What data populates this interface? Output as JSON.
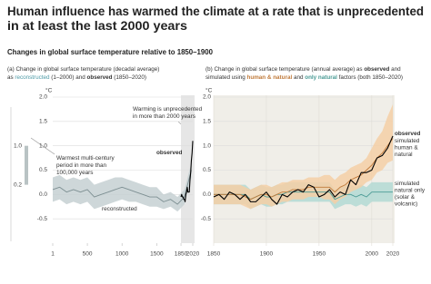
{
  "title_lines": [
    "Human influence has warmed the climate at a rate that is unprecedented",
    "in at least the last 2000 years"
  ],
  "subtitle": "Changes in global surface temperature relative to 1850–1900",
  "chart_data": [
    {
      "type": "line",
      "header": [
        [
          {
            "text": "(a) Change in global surface temperature (decadal average)"
          }
        ],
        [
          {
            "text": "as "
          },
          {
            "text": "reconstructed",
            "color": "#4d9aa6"
          },
          {
            "text": " (1–2000) and "
          },
          {
            "text": "observed",
            "bold": true
          },
          {
            "text": " (1850–2020)"
          }
        ]
      ],
      "y_unit": "°C",
      "xlim": [
        1,
        2020
      ],
      "xticks": [
        1,
        500,
        1000,
        1500,
        1850,
        2020
      ],
      "ylim": [
        -1,
        2
      ],
      "yticks": [
        -0.5,
        {
          "value": 0,
          "label": "0.0"
        },
        0.5,
        {
          "value": 1,
          "label": "1.0"
        },
        1.5,
        {
          "value": 2,
          "label": "2.0"
        }
      ],
      "grid": true,
      "annotations": [
        [
          "Warming is unprecedented",
          "in more than 2000 years"
        ],
        [
          "Warmest multi-century",
          "period in more than",
          "100,000 years"
        ]
      ],
      "range_bar": [
        0.2,
        {
          "value": 1,
          "label": "1.0"
        }
      ],
      "series": [
        {
          "name": "reconstructed",
          "color": "#7d8f92",
          "band_color": "#c5d0d2",
          "x": [
            1,
            100,
            200,
            300,
            400,
            500,
            600,
            700,
            800,
            900,
            1000,
            1100,
            1200,
            1300,
            1400,
            1500,
            1600,
            1700,
            1800,
            1900,
            2000
          ],
          "values": [
            0.1,
            0.15,
            0.05,
            0.1,
            0.05,
            0.1,
            -0.05,
            0.0,
            0.05,
            0.1,
            0.15,
            0.1,
            0.05,
            0.0,
            -0.05,
            -0.05,
            -0.15,
            -0.1,
            -0.2,
            -0.05,
            0.5
          ],
          "low": [
            -0.15,
            -0.1,
            -0.2,
            -0.15,
            -0.2,
            -0.15,
            -0.3,
            -0.25,
            -0.2,
            -0.15,
            -0.1,
            -0.15,
            -0.15,
            -0.2,
            -0.25,
            -0.25,
            -0.3,
            -0.25,
            -0.35,
            -0.2,
            0.35
          ],
          "high": [
            0.35,
            0.4,
            0.3,
            0.35,
            0.3,
            0.35,
            0.2,
            0.25,
            0.3,
            0.35,
            0.35,
            0.3,
            0.25,
            0.2,
            0.15,
            0.15,
            0.0,
            0.05,
            -0.05,
            0.1,
            0.65
          ]
        },
        {
          "name": "observed",
          "color": "#000000",
          "x": [
            1850,
            1860,
            1870,
            1880,
            1890,
            1900,
            1910,
            1920,
            1930,
            1940,
            1950,
            1960,
            1970,
            1980,
            1990,
            2000,
            2010,
            2020
          ],
          "values": [
            -0.05,
            0.0,
            -0.05,
            -0.05,
            -0.1,
            -0.1,
            -0.15,
            0.0,
            0.05,
            0.15,
            0.05,
            0.05,
            0.05,
            0.3,
            0.45,
            0.7,
            0.85,
            1.1
          ]
        }
      ]
    },
    {
      "type": "line",
      "header": [
        [
          {
            "text": "(b) Change in global surface temperature (annual average) as "
          },
          {
            "text": "observed",
            "bold": true
          },
          {
            "text": " and"
          }
        ],
        [
          {
            "text": "simulated using "
          },
          {
            "text": "human & natural",
            "bold": true,
            "color": "#c07a3a"
          },
          {
            "text": " and "
          },
          {
            "text": "only natural",
            "bold": true,
            "color": "#4a9b95"
          },
          {
            "text": " factors (both 1850–2020)"
          }
        ]
      ],
      "y_unit": "°C",
      "background": "#f0eee8",
      "xlim": [
        1850,
        2020
      ],
      "xticks": [
        1850,
        1900,
        1950,
        2000,
        2020
      ],
      "ylim": [
        -1,
        2
      ],
      "yticks": [
        -0.5,
        {
          "value": 0,
          "label": "0.0"
        },
        0.5,
        {
          "value": 1,
          "label": "1.0"
        },
        1.5,
        {
          "value": 2,
          "label": "2.0"
        }
      ],
      "grid": true,
      "xgrid": true,
      "x": [
        1850,
        1855,
        1860,
        1865,
        1870,
        1875,
        1880,
        1885,
        1890,
        1895,
        1900,
        1905,
        1910,
        1915,
        1920,
        1925,
        1930,
        1935,
        1940,
        1945,
        1950,
        1955,
        1960,
        1965,
        1970,
        1975,
        1980,
        1985,
        1990,
        1995,
        2000,
        2005,
        2010,
        2015,
        2020
      ],
      "series": [
        {
          "name": "simulated natural only (solar & volcanic)",
          "color": "#4a9b95",
          "band_color": "#b3d9d4",
          "values": [
            0.0,
            0.0,
            0.0,
            0.0,
            0.0,
            0.0,
            0.0,
            -0.1,
            -0.05,
            0.0,
            -0.05,
            -0.05,
            0.0,
            0.0,
            0.05,
            0.05,
            0.05,
            0.05,
            0.05,
            0.05,
            0.05,
            0.05,
            0.05,
            -0.1,
            -0.05,
            0.0,
            0.0,
            -0.05,
            0.0,
            -0.05,
            0.05,
            0.05,
            0.05,
            0.05,
            0.05
          ],
          "low": [
            -0.2,
            -0.2,
            -0.2,
            -0.2,
            -0.2,
            -0.2,
            -0.2,
            -0.3,
            -0.25,
            -0.2,
            -0.25,
            -0.25,
            -0.2,
            -0.2,
            -0.15,
            -0.15,
            -0.15,
            -0.15,
            -0.15,
            -0.15,
            -0.15,
            -0.15,
            -0.15,
            -0.3,
            -0.25,
            -0.2,
            -0.2,
            -0.25,
            -0.2,
            -0.25,
            -0.15,
            -0.15,
            -0.15,
            -0.15,
            -0.15
          ],
          "high": [
            0.2,
            0.2,
            0.2,
            0.2,
            0.2,
            0.2,
            0.2,
            0.1,
            0.15,
            0.2,
            0.15,
            0.15,
            0.2,
            0.2,
            0.25,
            0.25,
            0.25,
            0.25,
            0.25,
            0.25,
            0.25,
            0.25,
            0.25,
            0.1,
            0.15,
            0.2,
            0.2,
            0.15,
            0.2,
            0.15,
            0.25,
            0.25,
            0.25,
            0.25,
            0.25
          ]
        },
        {
          "name": "simulated human & natural",
          "color": "#c07a3a",
          "band_color": "#f5cfa6",
          "values": [
            0.0,
            0.0,
            0.0,
            0.0,
            0.0,
            0.0,
            -0.05,
            -0.1,
            -0.05,
            0.0,
            0.0,
            -0.05,
            0.0,
            0.05,
            0.05,
            0.1,
            0.1,
            0.1,
            0.15,
            0.15,
            0.15,
            0.15,
            0.15,
            0.05,
            0.15,
            0.2,
            0.3,
            0.35,
            0.4,
            0.5,
            0.6,
            0.75,
            0.85,
            1.0,
            1.15
          ],
          "low": [
            -0.2,
            -0.2,
            -0.2,
            -0.2,
            -0.2,
            -0.2,
            -0.25,
            -0.3,
            -0.25,
            -0.2,
            -0.2,
            -0.25,
            -0.2,
            -0.15,
            -0.15,
            -0.1,
            -0.1,
            -0.1,
            -0.05,
            -0.05,
            -0.05,
            -0.1,
            -0.1,
            -0.2,
            -0.1,
            -0.05,
            0.05,
            0.1,
            0.15,
            0.25,
            0.3,
            0.45,
            0.5,
            0.65,
            0.7
          ],
          "high": [
            0.2,
            0.2,
            0.2,
            0.2,
            0.2,
            0.2,
            0.15,
            0.1,
            0.15,
            0.2,
            0.2,
            0.15,
            0.2,
            0.25,
            0.25,
            0.3,
            0.3,
            0.3,
            0.35,
            0.35,
            0.35,
            0.4,
            0.4,
            0.3,
            0.4,
            0.45,
            0.55,
            0.6,
            0.65,
            0.75,
            0.95,
            1.15,
            1.3,
            1.6,
            1.85
          ]
        },
        {
          "name": "observed",
          "color": "#000000",
          "values": [
            -0.05,
            0.0,
            -0.1,
            0.05,
            0.0,
            -0.1,
            0.0,
            -0.15,
            -0.15,
            -0.05,
            0.05,
            -0.1,
            -0.2,
            0.0,
            -0.05,
            0.05,
            0.1,
            0.05,
            0.2,
            0.15,
            -0.05,
            0.0,
            0.1,
            -0.05,
            0.05,
            0.0,
            0.3,
            0.2,
            0.45,
            0.45,
            0.5,
            0.75,
            0.8,
            0.95,
            1.2
          ]
        }
      ]
    }
  ]
}
